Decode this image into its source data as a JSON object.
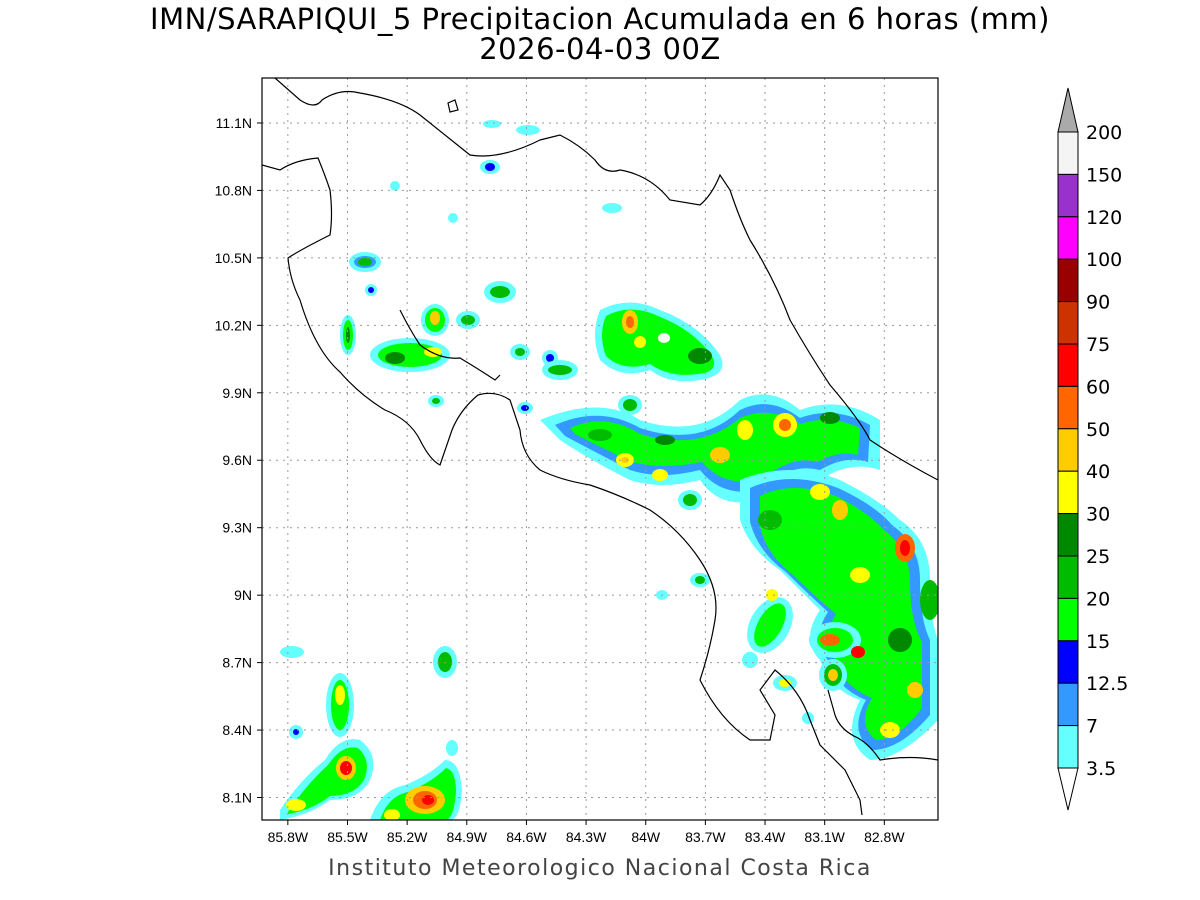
{
  "header": {
    "title": "IMN/SARAPIQUI_5 Precipitacion Acumulada en 6 horas (mm)",
    "subtitle": "2026-04-03 00Z"
  },
  "footer": {
    "credit": "Instituto Meteorologico Nacional Costa Rica"
  },
  "map": {
    "lat_labels": [
      "11.1N",
      "10.8N",
      "10.5N",
      "10.2N",
      "9.9N",
      "9.6N",
      "9.3N",
      "9N",
      "8.7N",
      "8.4N",
      "8.1N"
    ],
    "lat_values": [
      11.1,
      10.8,
      10.5,
      10.2,
      9.9,
      9.6,
      9.3,
      9.0,
      8.7,
      8.4,
      8.1
    ],
    "lon_labels": [
      "85.8W",
      "85.5W",
      "85.2W",
      "84.9W",
      "84.6W",
      "84.3W",
      "84W",
      "83.7W",
      "83.4W",
      "83.1W",
      "82.8W"
    ],
    "lon_values": [
      -85.8,
      -85.5,
      -85.2,
      -84.9,
      -84.6,
      -84.3,
      -84.0,
      -83.7,
      -83.4,
      -83.1,
      -82.8
    ],
    "lon_range": [
      -85.93,
      -82.53
    ],
    "lat_range": [
      8.0,
      11.3
    ],
    "grid": true
  },
  "legend": {
    "labels": [
      "200",
      "150",
      "120",
      "100",
      "90",
      "75",
      "60",
      "50",
      "40",
      "30",
      "25",
      "20",
      "15",
      "12.5",
      "7",
      "3.5"
    ],
    "colors": [
      "#f4f4f4",
      "#9932cc",
      "#ff00ff",
      "#990000",
      "#cc3300",
      "#ff0000",
      "#ff6600",
      "#ffcc00",
      "#ffff00",
      "#008800",
      "#00bb00",
      "#00ff00",
      "#0000ff",
      "#3399ff",
      "#66ffff"
    ],
    "over_color": "#aaaaaa",
    "under_color": "#ffffff"
  }
}
